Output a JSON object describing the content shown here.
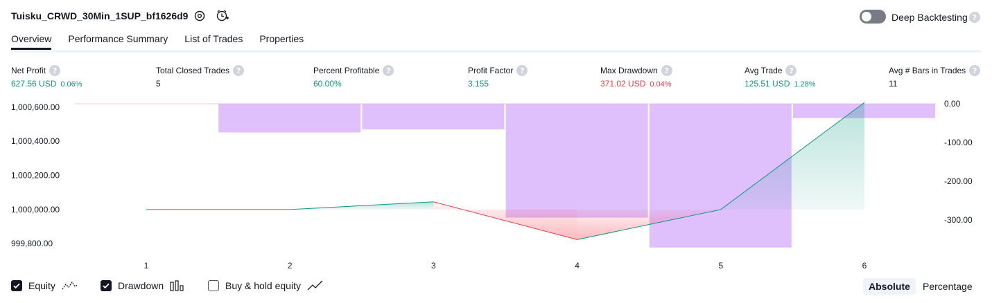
{
  "header": {
    "title": "Tuisku_CRWD_30Min_1SUP_bf1626d9",
    "deep_backtesting_label": "Deep Backtesting",
    "help_glyph": "?"
  },
  "tabs": [
    {
      "label": "Overview"
    },
    {
      "label": "Performance Summary"
    },
    {
      "label": "List of Trades"
    },
    {
      "label": "Properties"
    }
  ],
  "metrics": [
    {
      "label": "Net Profit",
      "value": "627.56 USD",
      "pct": "0.06%"
    },
    {
      "label": "Total Closed Trades",
      "value": "5",
      "pct": ""
    },
    {
      "label": "Percent Profitable",
      "value": "60.00%",
      "pct": ""
    },
    {
      "label": "Profit Factor",
      "value": "3.155",
      "pct": ""
    },
    {
      "label": "Max Drawdown",
      "value": "371.02 USD",
      "pct": "0.04%"
    },
    {
      "label": "Avg Trade",
      "value": "125.51 USD",
      "pct": "1.28%"
    },
    {
      "label": "Avg # Bars in Trades",
      "value": "11",
      "pct": ""
    }
  ],
  "chart_data": {
    "type": "line",
    "x": [
      1,
      2,
      3,
      4,
      5,
      6
    ],
    "x_tick_labels": [
      "1",
      "2",
      "3",
      "4",
      "5",
      "6"
    ],
    "y_left_tick_labels": [
      "1,000,600.00",
      "1,000,400.00",
      "1,000,200.00",
      "1,000,000.00",
      "999,800.00"
    ],
    "y_right_tick_labels": [
      "0.00",
      "-100.00",
      "-200.00",
      "-300.00"
    ],
    "ylim_left": [
      999760,
      1000620
    ],
    "ylim_right": [
      -375,
      0
    ],
    "series": [
      {
        "name": "Equity",
        "type": "line",
        "values": [
          1000000,
          1000000,
          1000045,
          999823.4,
          1000000,
          1000627.56
        ]
      },
      {
        "name": "Drawdown",
        "type": "bar",
        "axis": "right",
        "x": [
          1,
          2,
          3,
          4,
          5,
          6
        ],
        "values": [
          0,
          -74,
          -66,
          -294,
          -371.02,
          -37
        ]
      }
    ],
    "colors": {
      "up": "#089981",
      "down": "#f23645",
      "drawdown": "#d3a8fb",
      "baseline": "#f7c6d0"
    }
  },
  "legend": {
    "equity_label": "Equity",
    "drawdown_label": "Drawdown",
    "buyhold_label": "Buy & hold equity",
    "equity_checked": true,
    "drawdown_checked": true,
    "buyhold_checked": false
  },
  "mode": {
    "absolute_label": "Absolute",
    "percentage_label": "Percentage",
    "selected": "Absolute"
  }
}
